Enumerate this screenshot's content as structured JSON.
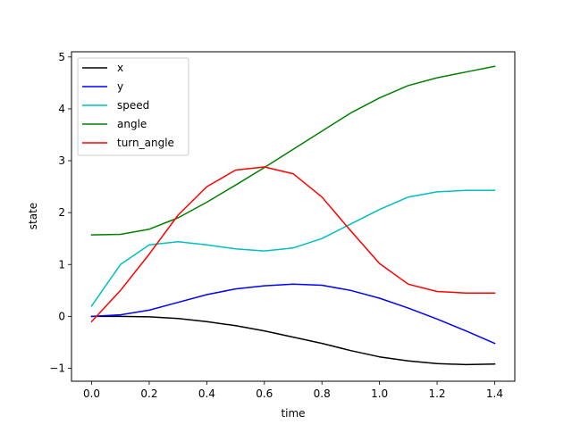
{
  "chart_data": {
    "type": "line",
    "xlabel": "time",
    "ylabel": "state",
    "xlim": [
      -0.07,
      1.47
    ],
    "ylim": [
      -1.25,
      5.1
    ],
    "xticks": [
      0.0,
      0.2,
      0.4,
      0.6,
      0.8,
      1.0,
      1.2,
      1.4
    ],
    "xtick_labels": [
      "0.0",
      "0.2",
      "0.4",
      "0.6",
      "0.8",
      "1.0",
      "1.2",
      "1.4"
    ],
    "yticks": [
      -1,
      0,
      1,
      2,
      3,
      4,
      5
    ],
    "ytick_labels": [
      "−1",
      "0",
      "1",
      "2",
      "3",
      "4",
      "5"
    ],
    "grid": false,
    "legend_position": "top-left",
    "x": [
      0.0,
      0.1,
      0.2,
      0.3,
      0.4,
      0.5,
      0.6,
      0.7,
      0.8,
      0.9,
      1.0,
      1.1,
      1.2,
      1.3,
      1.4
    ],
    "series": [
      {
        "name": "x",
        "color": "#000000",
        "values": [
          0.0,
          0.0,
          -0.01,
          -0.04,
          -0.1,
          -0.18,
          -0.28,
          -0.4,
          -0.52,
          -0.66,
          -0.78,
          -0.86,
          -0.91,
          -0.93,
          -0.92
        ]
      },
      {
        "name": "y",
        "color": "#0000ff",
        "values": [
          0.0,
          0.03,
          0.12,
          0.27,
          0.42,
          0.53,
          0.59,
          0.62,
          0.6,
          0.5,
          0.35,
          0.16,
          -0.05,
          -0.28,
          -0.52
        ]
      },
      {
        "name": "speed",
        "color": "#00bfbf",
        "values": [
          0.2,
          1.0,
          1.38,
          1.44,
          1.38,
          1.3,
          1.26,
          1.32,
          1.5,
          1.78,
          2.06,
          2.3,
          2.4,
          2.43,
          2.43
        ]
      },
      {
        "name": "angle",
        "color": "#008000",
        "values": [
          1.57,
          1.58,
          1.68,
          1.9,
          2.2,
          2.53,
          2.87,
          3.22,
          3.57,
          3.92,
          4.21,
          4.45,
          4.6,
          4.71,
          4.82
        ]
      },
      {
        "name": "turn_angle",
        "color": "#ff0000",
        "values": [
          -0.1,
          0.5,
          1.2,
          1.95,
          2.5,
          2.82,
          2.88,
          2.75,
          2.3,
          1.65,
          1.02,
          0.62,
          0.48,
          0.45,
          0.45
        ]
      }
    ]
  }
}
